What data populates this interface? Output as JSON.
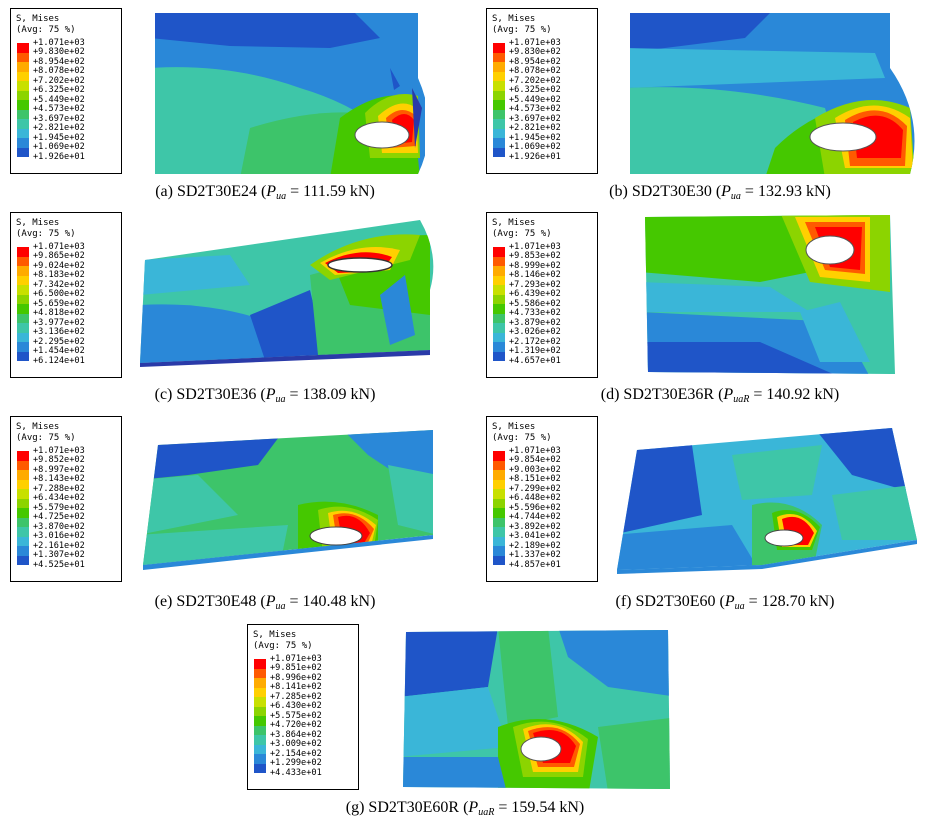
{
  "colors": [
    "#ff0000",
    "#ff5a00",
    "#ffab00",
    "#ffd000",
    "#c8e000",
    "#8cd400",
    "#45c800",
    "#3dc46a",
    "#3ec6a8",
    "#3ab6d8",
    "#2a88d8",
    "#1f55c8",
    "#2a3aa8"
  ],
  "panels": [
    {
      "id": "a",
      "legend_title": "S, Mises",
      "legend_sub": "(Avg: 75 %)",
      "values": [
        "+1.071e+03",
        "+9.830e+02",
        "+8.954e+02",
        "+8.078e+02",
        "+7.202e+02",
        "+6.325e+02",
        "+5.449e+02",
        "+4.573e+02",
        "+3.697e+02",
        "+2.821e+02",
        "+1.945e+02",
        "+1.069e+02",
        "+1.926e+01"
      ],
      "caption_prefix": "(a) SD2T30E24 (",
      "caption_var": "P",
      "caption_sub": "ua",
      "caption_suffix": " = 111.59 kN)"
    },
    {
      "id": "b",
      "legend_title": "S, Mises",
      "legend_sub": "(Avg: 75 %)",
      "values": [
        "+1.071e+03",
        "+9.830e+02",
        "+8.954e+02",
        "+8.078e+02",
        "+7.202e+02",
        "+6.325e+02",
        "+5.449e+02",
        "+4.573e+02",
        "+3.697e+02",
        "+2.821e+02",
        "+1.945e+02",
        "+1.069e+02",
        "+1.926e+01"
      ],
      "caption_prefix": "(b) SD2T30E30 (",
      "caption_var": "P",
      "caption_sub": "ua",
      "caption_suffix": " = 132.93 kN)"
    },
    {
      "id": "c",
      "legend_title": "S, Mises",
      "legend_sub": "(Avg: 75 %)",
      "values": [
        "+1.071e+03",
        "+9.865e+02",
        "+9.024e+02",
        "+8.183e+02",
        "+7.342e+02",
        "+6.500e+02",
        "+5.659e+02",
        "+4.818e+02",
        "+3.977e+02",
        "+3.136e+02",
        "+2.295e+02",
        "+1.454e+02",
        "+6.124e+01"
      ],
      "caption_prefix": "(c) SD2T30E36 (",
      "caption_var": "P",
      "caption_sub": "ua",
      "caption_suffix": " = 138.09 kN)"
    },
    {
      "id": "d",
      "legend_title": "S, Mises",
      "legend_sub": "(Avg: 75 %)",
      "values": [
        "+1.071e+03",
        "+9.853e+02",
        "+8.999e+02",
        "+8.146e+02",
        "+7.293e+02",
        "+6.439e+02",
        "+5.586e+02",
        "+4.733e+02",
        "+3.879e+02",
        "+3.026e+02",
        "+2.172e+02",
        "+1.319e+02",
        "+4.657e+01"
      ],
      "caption_prefix": "(d) SD2T30E36R (",
      "caption_var": "P",
      "caption_sub": "uaR",
      "caption_suffix": " = 140.92 kN)"
    },
    {
      "id": "e",
      "legend_title": "S, Mises",
      "legend_sub": "(Avg: 75 %)",
      "values": [
        "+1.071e+03",
        "+9.852e+02",
        "+8.997e+02",
        "+8.143e+02",
        "+7.288e+02",
        "+6.434e+02",
        "+5.579e+02",
        "+4.725e+02",
        "+3.870e+02",
        "+3.016e+02",
        "+2.161e+02",
        "+1.307e+02",
        "+4.525e+01"
      ],
      "caption_prefix": "(e) SD2T30E48 (",
      "caption_var": "P",
      "caption_sub": "ua",
      "caption_suffix": " = 140.48 kN)"
    },
    {
      "id": "f",
      "legend_title": "S, Mises",
      "legend_sub": "(Avg: 75 %)",
      "values": [
        "+1.071e+03",
        "+9.854e+02",
        "+9.003e+02",
        "+8.151e+02",
        "+7.299e+02",
        "+6.448e+02",
        "+5.596e+02",
        "+4.744e+02",
        "+3.892e+02",
        "+3.041e+02",
        "+2.189e+02",
        "+1.337e+02",
        "+4.857e+01"
      ],
      "caption_prefix": "(f) SD2T30E60 (",
      "caption_var": "P",
      "caption_sub": "ua",
      "caption_suffix": " = 128.70 kN)"
    },
    {
      "id": "g",
      "legend_title": "S, Mises",
      "legend_sub": "(Avg: 75 %)",
      "values": [
        "+1.071e+03",
        "+9.851e+02",
        "+8.996e+02",
        "+8.141e+02",
        "+7.285e+02",
        "+6.430e+02",
        "+5.575e+02",
        "+4.720e+02",
        "+3.864e+02",
        "+3.009e+02",
        "+2.154e+02",
        "+1.299e+02",
        "+4.433e+01"
      ],
      "caption_prefix": "(g) SD2T30E60R (",
      "caption_var": "P",
      "caption_sub": "uaR",
      "caption_suffix": " = 159.54 kN)"
    }
  ]
}
